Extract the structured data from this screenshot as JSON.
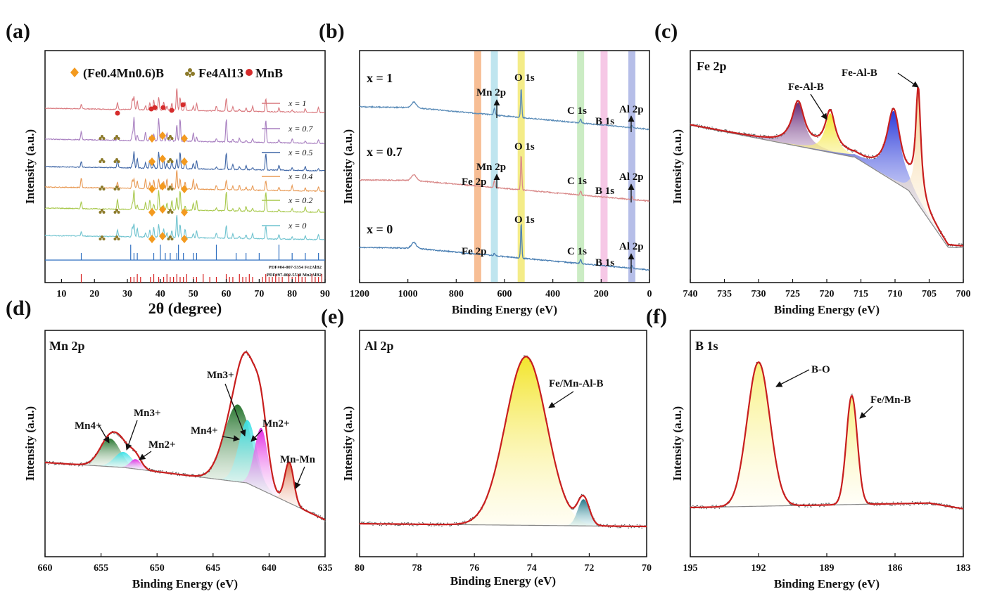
{
  "figure": {
    "panels": {
      "a": {
        "letter": "(a)",
        "ylabel": "Intensity (a.u.)",
        "xlabel": "2θ (degree)",
        "phases": [
          {
            "label": "(Fe0.4Mn0.6)B",
            "color": "#f39a1f",
            "symbol": "diamond"
          },
          {
            "label": "Fe4Al13",
            "color": "#8c7a2a",
            "symbol": "club"
          },
          {
            "label": "MnB",
            "color": "#d62b2b",
            "symbol": "circle"
          }
        ],
        "pdf1": "PDF#04-007-5354 Fe2AlB2",
        "pdf2": "PDF#97-002-5518 Mn2AlB2"
      },
      "b": {
        "letter": "(b)",
        "ylabel": "Intensity (a.u.)",
        "xlabel": "Binding Energy (eV)"
      },
      "c": {
        "letter": "(c)",
        "title": "Fe 2p",
        "ylabel": "Intensity (a.u.)",
        "xlabel": "Binding Energy (eV)"
      },
      "d": {
        "letter": "(d)",
        "title": "Mn 2p",
        "ylabel": "Intensity (a.u.)",
        "xlabel": "Binding Energy (eV)"
      },
      "e": {
        "letter": "(e)",
        "title": "Al 2p",
        "ylabel": "Intensity (a.u.)",
        "xlabel": "Binding Energy (eV)"
      },
      "f": {
        "letter": "(f)",
        "title": "B 1s",
        "ylabel": "Intensity (a.u.)",
        "xlabel": "Binding Energy (eV)"
      }
    }
  },
  "chart_data": [
    {
      "panel": "a",
      "type": "line",
      "title": "",
      "xlabel": "2θ (degree)",
      "ylabel": "Intensity (a.u.)",
      "xlim": [
        5,
        90
      ],
      "xticks": [
        10,
        20,
        30,
        40,
        50,
        60,
        70,
        80,
        90
      ],
      "series": [
        {
          "name": "x = 1",
          "color": "#d9787e"
        },
        {
          "name": "x = 0.7",
          "color": "#a87fc0"
        },
        {
          "name": "x = 0.5",
          "color": "#3f66a6"
        },
        {
          "name": "x = 0.4",
          "color": "#e89a55"
        },
        {
          "name": "x = 0.2",
          "color": "#a9c94e"
        },
        {
          "name": "x = 0",
          "color": "#6fc3cf"
        }
      ],
      "peaks": [
        16,
        27,
        31.5,
        32,
        33,
        35.5,
        36.8,
        38,
        39.5,
        41,
        42,
        43.5,
        45,
        46,
        47.5,
        50,
        51,
        57,
        60,
        62,
        64,
        66,
        68,
        72,
        76,
        80,
        84,
        88
      ],
      "reference_lines": [
        {
          "name": "PDF#04-007-5354 Fe2AlB2",
          "color": "#2f6fc0"
        },
        {
          "name": "PDF#97-002-5518 Mn2AlB2",
          "color": "#d62020"
        }
      ]
    },
    {
      "panel": "b",
      "type": "line",
      "title": "",
      "xlabel": "Binding Energy (eV)",
      "ylabel": "Intensity (a.u.)",
      "xlim": [
        1200,
        0
      ],
      "xticks": [
        1200,
        1000,
        800,
        600,
        400,
        200,
        0
      ],
      "series": [
        {
          "name": "x = 1",
          "color": "#5b8cb8"
        },
        {
          "name": "x = 0.7",
          "color": "#d98a8a"
        },
        {
          "name": "x = 0",
          "color": "#4a7fb3"
        }
      ],
      "bands": [
        {
          "label": "Fe 2p",
          "energy": 711,
          "color": "#f4a872"
        },
        {
          "label": "Mn 2p",
          "energy": 642,
          "color": "#a9dcea"
        },
        {
          "label": "O 1s",
          "energy": 531,
          "color": "#f0e660"
        },
        {
          "label": "C 1s",
          "energy": 285,
          "color": "#b9e6b0"
        },
        {
          "label": "B 1s",
          "energy": 188,
          "color": "#f3b6dd"
        },
        {
          "label": "Al 2p",
          "energy": 73,
          "color": "#9da8e0"
        }
      ],
      "curve_labels": [
        "x = 1",
        "x = 0.7",
        "x = 0"
      ],
      "annotations": {
        "x1": [
          "Mn 2p",
          "O 1s",
          "C 1s",
          "B 1s",
          "Al 2p"
        ],
        "x07": [
          "Fe 2p",
          "Mn 2p",
          "O 1s",
          "C 1s",
          "B 1s",
          "Al 2p"
        ],
        "x0": [
          "Fe 2p",
          "O 1s",
          "C 1s",
          "B 1s",
          "Al 2p"
        ]
      }
    },
    {
      "panel": "c",
      "type": "line",
      "title": "Fe 2p",
      "xlabel": "Binding Energy (eV)",
      "ylabel": "Intensity (a.u.)",
      "xlim": [
        740,
        700
      ],
      "xticks": [
        740,
        735,
        730,
        725,
        720,
        715,
        710,
        705,
        700
      ],
      "components": [
        {
          "center": 724.2,
          "color": "#6a2a78"
        },
        {
          "center": 719.5,
          "color": "#f0dc20"
        },
        {
          "center": 710.2,
          "color": "#2a3ad8"
        },
        {
          "center": 706.6,
          "color": "#f6d8a0"
        }
      ],
      "annotations": [
        "Fe-Al-B",
        "Fe-Al-B"
      ]
    },
    {
      "panel": "d",
      "type": "line",
      "title": "Mn 2p",
      "xlabel": "Binding Energy (eV)",
      "ylabel": "Intensity (a.u.)",
      "xlim": [
        660,
        635
      ],
      "xticks": [
        660,
        655,
        650,
        645,
        640,
        635
      ],
      "components": [
        {
          "label": "Mn4+",
          "center": 654.2,
          "color": "#1f7a2a"
        },
        {
          "label": "Mn3+",
          "center": 653.0,
          "color": "#4fe0e0"
        },
        {
          "label": "Mn2+",
          "center": 651.8,
          "color": "#e020e0"
        },
        {
          "label": "Mn4+",
          "center": 642.7,
          "color": "#1f7a2a"
        },
        {
          "label": "Mn3+",
          "center": 641.7,
          "color": "#4fe0e0"
        },
        {
          "label": "Mn2+",
          "center": 640.6,
          "color": "#e020e0"
        },
        {
          "label": "Mn-Mn",
          "center": 638.2,
          "color": "#e0704a"
        }
      ],
      "annotations": [
        "Mn4+",
        "Mn3+",
        "Mn2+",
        "Mn4+",
        "Mn3+",
        "Mn2+",
        "Mn-Mn"
      ]
    },
    {
      "panel": "e",
      "type": "line",
      "title": "Al 2p",
      "xlabel": "Binding Energy (eV)",
      "ylabel": "Intensity (a.u.)",
      "xlim": [
        80,
        70
      ],
      "xticks": [
        80,
        78,
        76,
        74,
        72,
        70
      ],
      "components": [
        {
          "label": "Fe/Mn-Al-B",
          "center": 74.2,
          "color": "#f0e040"
        },
        {
          "center": 72.2,
          "color": "#1e7a8a"
        }
      ],
      "annotations": [
        "Fe/Mn-Al-B"
      ]
    },
    {
      "panel": "f",
      "type": "line",
      "title": "B 1s",
      "xlabel": "Binding Energy (eV)",
      "ylabel": "Intensity (a.u.)",
      "xlim": [
        195,
        183
      ],
      "xticks": [
        195,
        192,
        189,
        186,
        183
      ],
      "components": [
        {
          "label": "B-O",
          "center": 192.0,
          "color": "#f6ef70"
        },
        {
          "label": "Fe/Mn-B",
          "center": 187.9,
          "color": "#f6ef70"
        }
      ],
      "annotations": [
        "B-O",
        "Fe/Mn-B"
      ]
    }
  ]
}
